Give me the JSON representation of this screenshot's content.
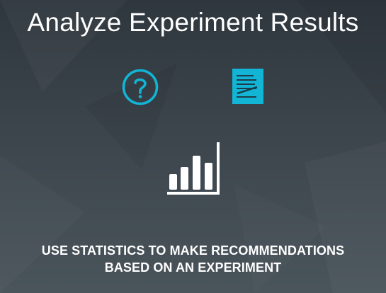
{
  "slide": {
    "title": "Analyze Experiment Results",
    "subtitle_lines": [
      "USE STATISTICS TO MAKE RECOMMENDATIONS",
      "BASED ON AN EXPERIMENT"
    ]
  },
  "icons": {
    "question": "question-mark-circle-icon",
    "document": "document-notes-icon",
    "chart": "bar-chart-icon"
  },
  "colors": {
    "accent": "#12b5d6",
    "text": "#ffffff"
  }
}
